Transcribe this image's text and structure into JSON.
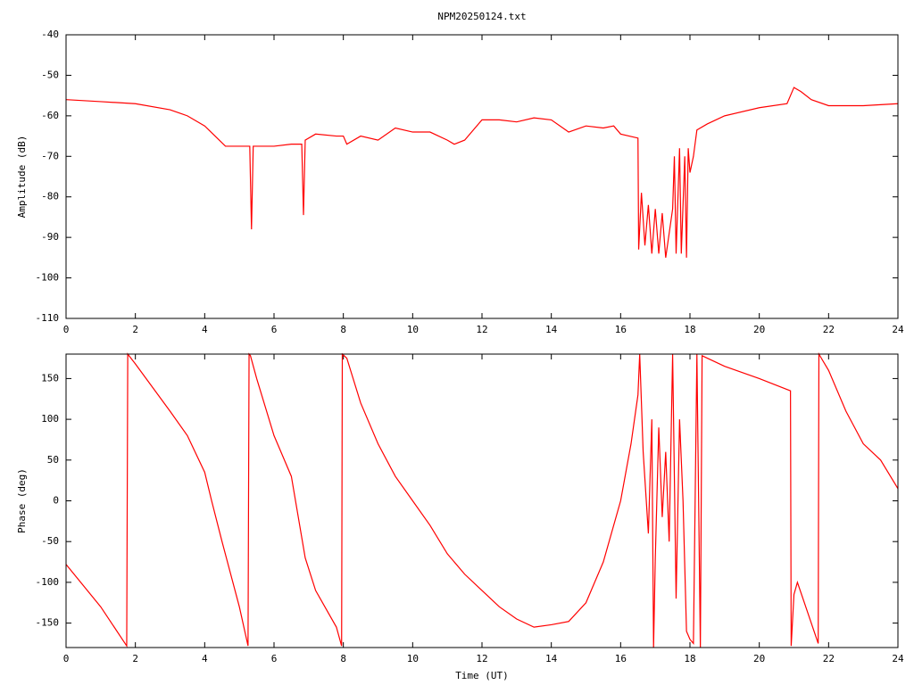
{
  "chart_data": [
    {
      "type": "line",
      "title": "NPM20250124.txt",
      "ylabel": "Amplitude (dB)",
      "xlim": [
        0,
        24
      ],
      "xticks": [
        0,
        2,
        4,
        6,
        8,
        10,
        12,
        14,
        16,
        18,
        20,
        22,
        24
      ],
      "ylim": [
        -110,
        -40
      ],
      "yticks": [
        -40,
        -50,
        -60,
        -70,
        -80,
        -90,
        -100,
        -110
      ],
      "x": [
        0,
        1,
        2,
        3,
        3.5,
        4,
        4.3,
        4.6,
        5,
        5.3,
        5.35,
        5.4,
        6,
        6.5,
        6.8,
        6.85,
        6.9,
        7.2,
        7.8,
        8,
        8.1,
        8.5,
        9,
        9.5,
        10,
        10.5,
        11,
        11.2,
        11.5,
        12,
        12.5,
        13,
        13.5,
        14,
        14.5,
        15,
        15.5,
        15.8,
        16,
        16.5,
        16.52,
        16.6,
        16.7,
        16.8,
        16.9,
        17,
        17.1,
        17.2,
        17.3,
        17.5,
        17.55,
        17.6,
        17.7,
        17.75,
        17.85,
        17.9,
        17.95,
        18,
        18.1,
        18.2,
        18.5,
        19,
        20,
        20.8,
        21,
        21.2,
        21.5,
        22,
        23,
        24
      ],
      "series": [
        {
          "color": "#ff0000",
          "values": [
            -56,
            -56.5,
            -57,
            -58.5,
            -60,
            -62.5,
            -65,
            -67.5,
            -67.5,
            -67.5,
            -88,
            -67.5,
            -67.5,
            -67,
            -67,
            -84.5,
            -66,
            -64.5,
            -65,
            -65,
            -67,
            -65,
            -66,
            -63,
            -64,
            -64,
            -66,
            -67,
            -66,
            -61,
            -61,
            -61.5,
            -60.5,
            -61,
            -64,
            -62.5,
            -63,
            -62.5,
            -64.5,
            -65.5,
            -93,
            -79,
            -92,
            -82,
            -94,
            -83,
            -94,
            -84,
            -95,
            -83,
            -70,
            -94,
            -68,
            -94,
            -70,
            -95,
            -68,
            -74,
            -70,
            -63.5,
            -62,
            -60,
            -58,
            -57,
            -53,
            -54,
            -56,
            -57.5,
            -57.5,
            -57
          ]
        }
      ]
    },
    {
      "type": "line",
      "xlabel": "Time (UT)",
      "ylabel": "Phase (deg)",
      "xlim": [
        0,
        24
      ],
      "xticks": [
        0,
        2,
        4,
        6,
        8,
        10,
        12,
        14,
        16,
        18,
        20,
        22,
        24
      ],
      "ylim": [
        -180,
        180
      ],
      "yticks": [
        150,
        100,
        50,
        0,
        -50,
        -100,
        -150
      ],
      "x": [
        0,
        1,
        1.75,
        1.78,
        2,
        3,
        3.5,
        4,
        4.2,
        4.5,
        5,
        5.25,
        5.28,
        5.32,
        5.5,
        6,
        6.5,
        6.9,
        7.2,
        7.8,
        7.95,
        7.97,
        8.1,
        8.5,
        9,
        9.5,
        10,
        10.5,
        11,
        11.5,
        12,
        12.5,
        13,
        13.5,
        14,
        14.5,
        15,
        15.5,
        16,
        16.3,
        16.5,
        16.55,
        16.65,
        16.8,
        16.9,
        16.95,
        17,
        17.1,
        17.2,
        17.3,
        17.4,
        17.5,
        17.6,
        17.7,
        17.8,
        17.9,
        18,
        18.1,
        18.2,
        18.3,
        18.35,
        18.5,
        19,
        20,
        20.9,
        20.92,
        21,
        21.1,
        21.3,
        21.7,
        21.72,
        22,
        22.5,
        23,
        23.5,
        24
      ],
      "series": [
        {
          "color": "#ff0000",
          "values": [
            -78,
            -130,
            -178,
            180,
            168,
            110,
            80,
            35,
            0,
            -50,
            -130,
            -178,
            180,
            178,
            150,
            80,
            30,
            -70,
            -110,
            -155,
            -178,
            180,
            175,
            120,
            70,
            30,
            0,
            -30,
            -65,
            -90,
            -110,
            -130,
            -145,
            -155,
            -152,
            -148,
            -125,
            -75,
            0,
            70,
            130,
            180,
            60,
            -40,
            100,
            -180,
            -70,
            90,
            -20,
            60,
            -50,
            180,
            -120,
            100,
            0,
            -160,
            -170,
            -175,
            180,
            -180,
            178,
            175,
            165,
            150,
            135,
            -178,
            -115,
            -100,
            -125,
            -175,
            180,
            160,
            110,
            70,
            50,
            15
          ]
        }
      ]
    }
  ]
}
